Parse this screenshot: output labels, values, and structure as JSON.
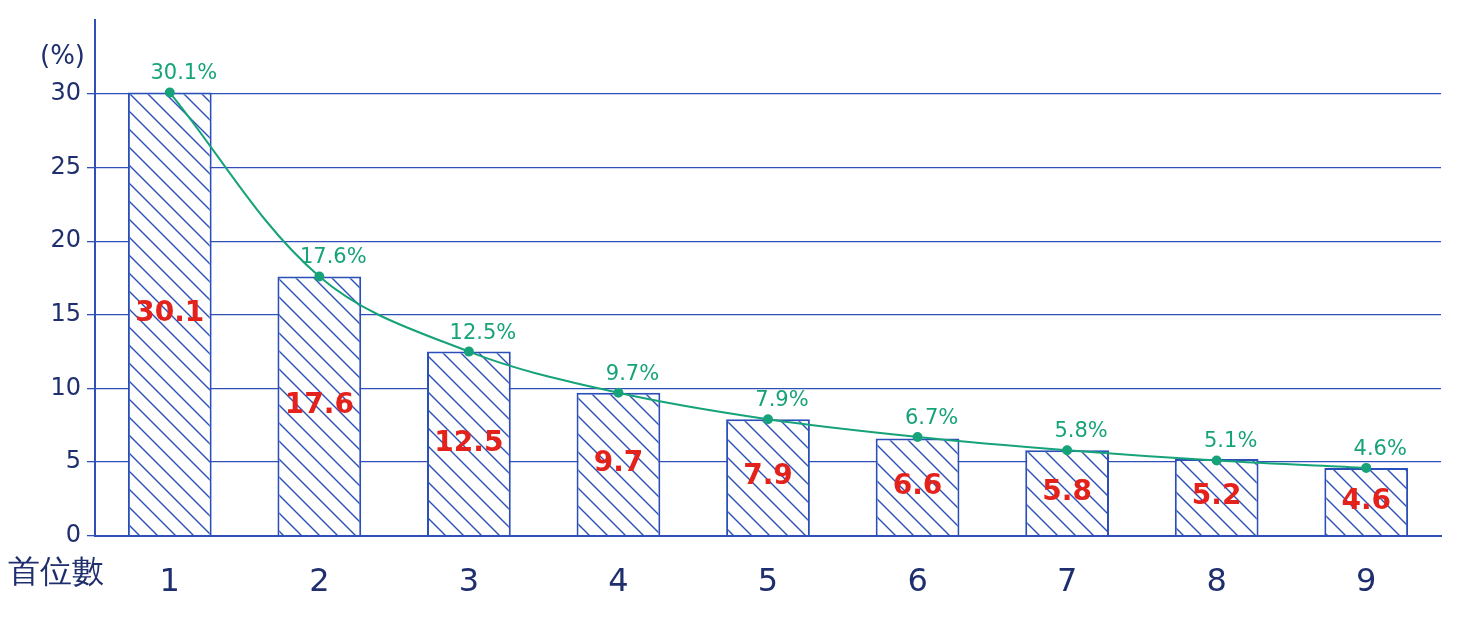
{
  "chart_data": {
    "type": "bar",
    "y_label": "(%)",
    "x_label": "首位數",
    "categories": [
      "1",
      "2",
      "3",
      "4",
      "5",
      "6",
      "7",
      "8",
      "9"
    ],
    "ylim": [
      0,
      35
    ],
    "yticks": [
      0,
      5,
      10,
      15,
      20,
      25,
      30
    ],
    "grid": true,
    "series": [
      {
        "type": "bar",
        "color": "#2b4fb8",
        "data_labels": true,
        "values": [
          30.1,
          17.6,
          12.5,
          9.7,
          7.9,
          6.6,
          5.8,
          5.2,
          4.6
        ]
      },
      {
        "type": "line",
        "color": "#17a37a",
        "marker": "circle",
        "data_labels": true,
        "values": [
          30.1,
          17.6,
          12.5,
          9.7,
          7.9,
          6.7,
          5.8,
          5.1,
          4.6
        ],
        "value_labels": [
          "30.1%",
          "17.6%",
          "12.5%",
          "9.7%",
          "7.9%",
          "6.7%",
          "5.8%",
          "5.1%",
          "4.6%"
        ]
      }
    ]
  }
}
